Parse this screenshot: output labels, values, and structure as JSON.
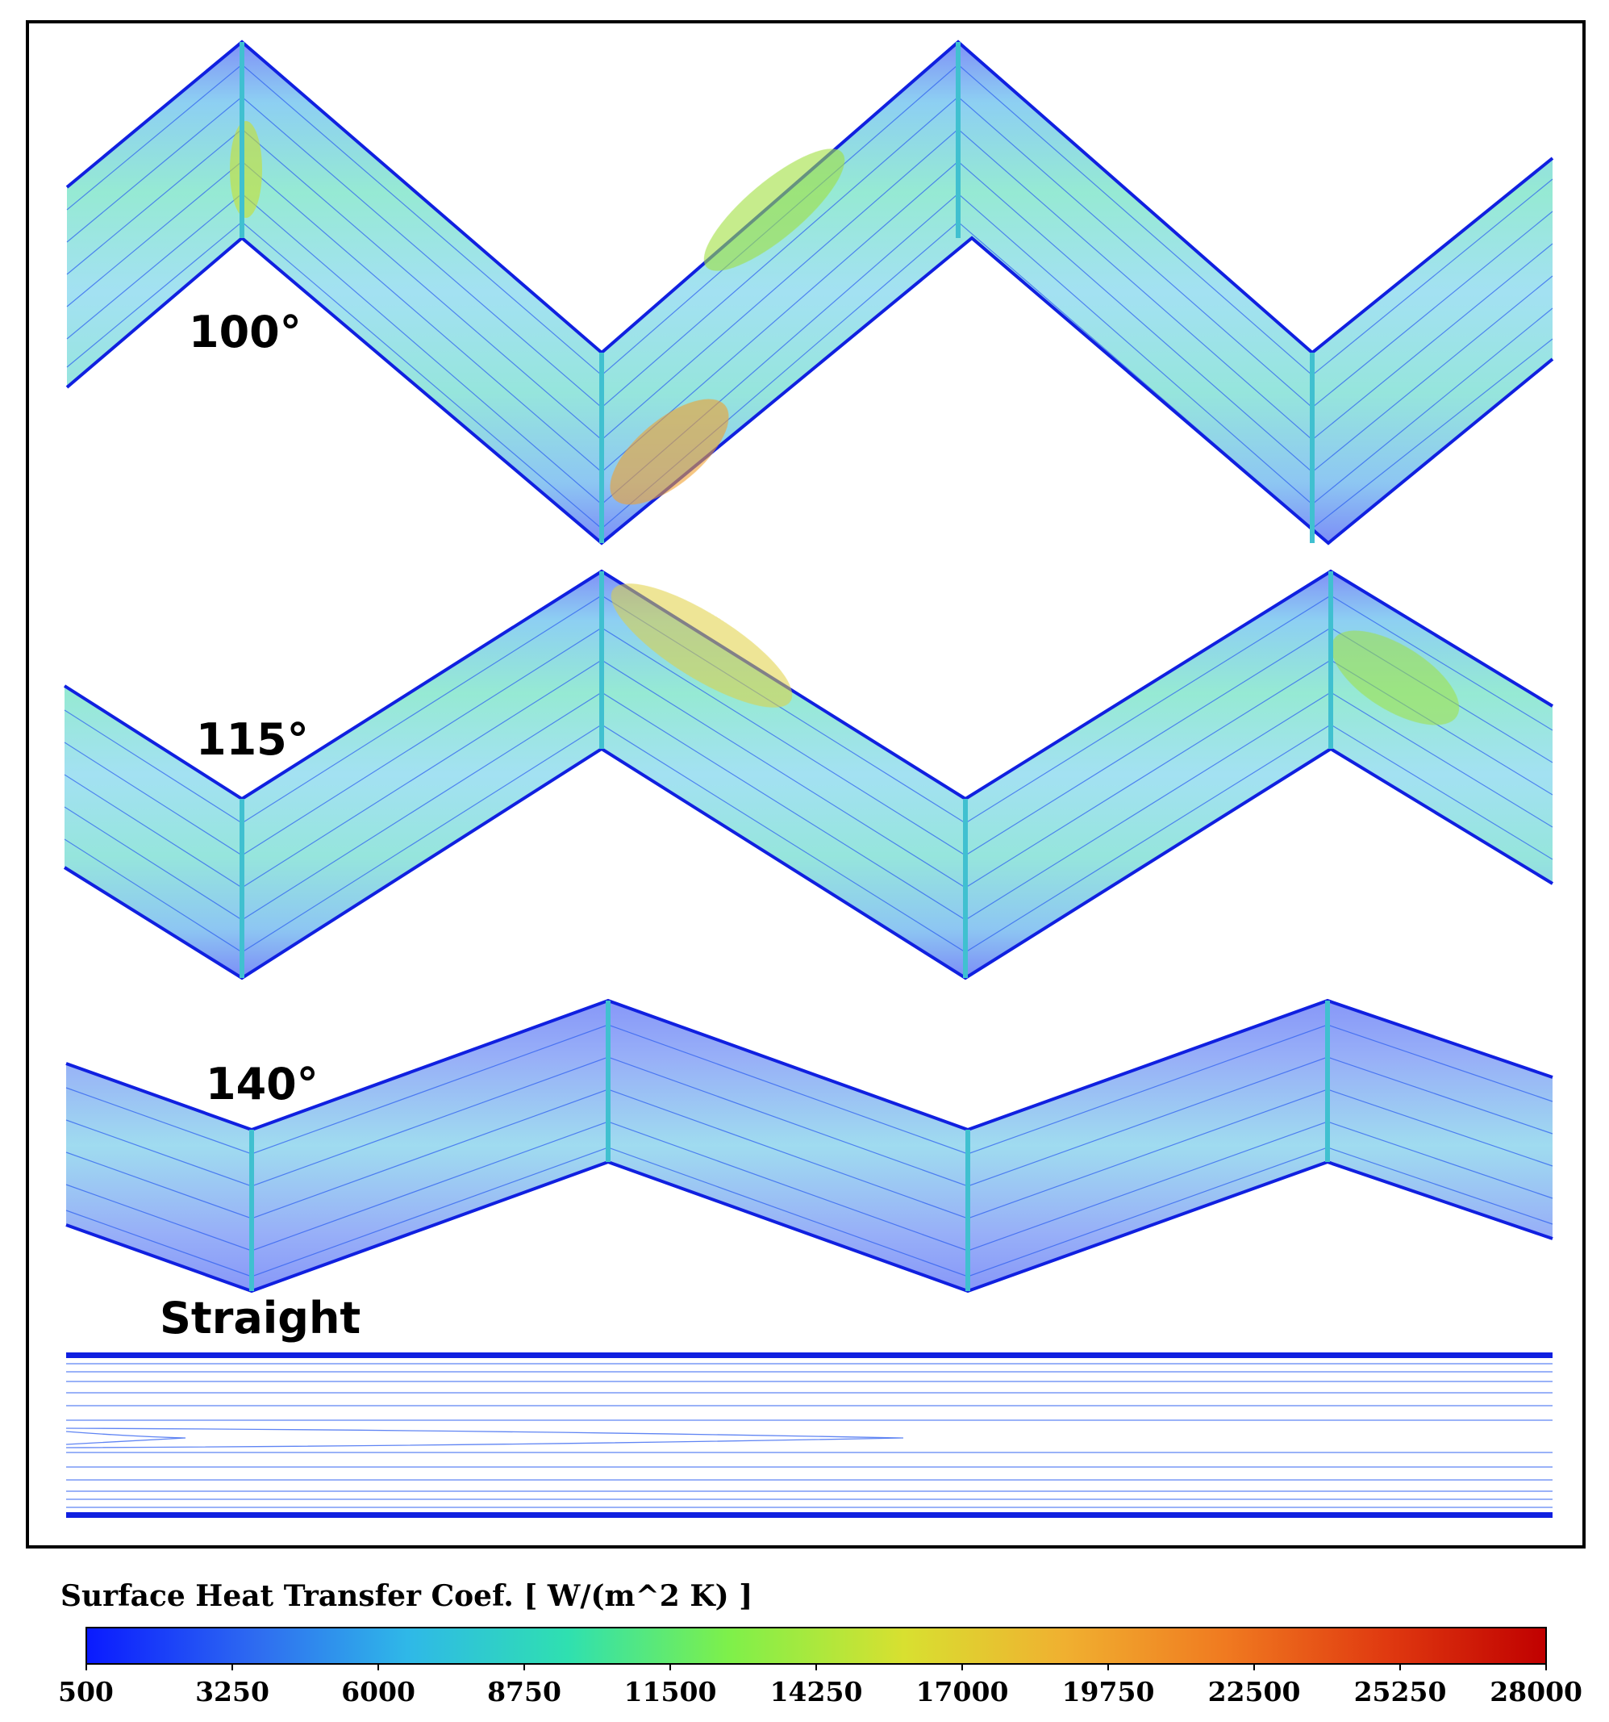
{
  "panels": [
    {
      "label": "100°"
    },
    {
      "label": "115°"
    },
    {
      "label": "140°"
    },
    {
      "label": "Straight"
    }
  ],
  "colorbar": {
    "title": "Surface Heat Transfer Coef. [ W/(m^2 K) ]",
    "ticks": [
      "500",
      "3250",
      "6000",
      "8750",
      "11500",
      "14250",
      "17000",
      "19750",
      "22500",
      "25250",
      "28000"
    ],
    "min": 500,
    "max": 28000,
    "colors": [
      "#0a1aff",
      "#2f6ef0",
      "#2fb8e8",
      "#2fe0b0",
      "#7ef04a",
      "#d8e030",
      "#f0b030",
      "#f07a20",
      "#e03a10",
      "#c00000"
    ]
  },
  "frame_color": "#000000"
}
